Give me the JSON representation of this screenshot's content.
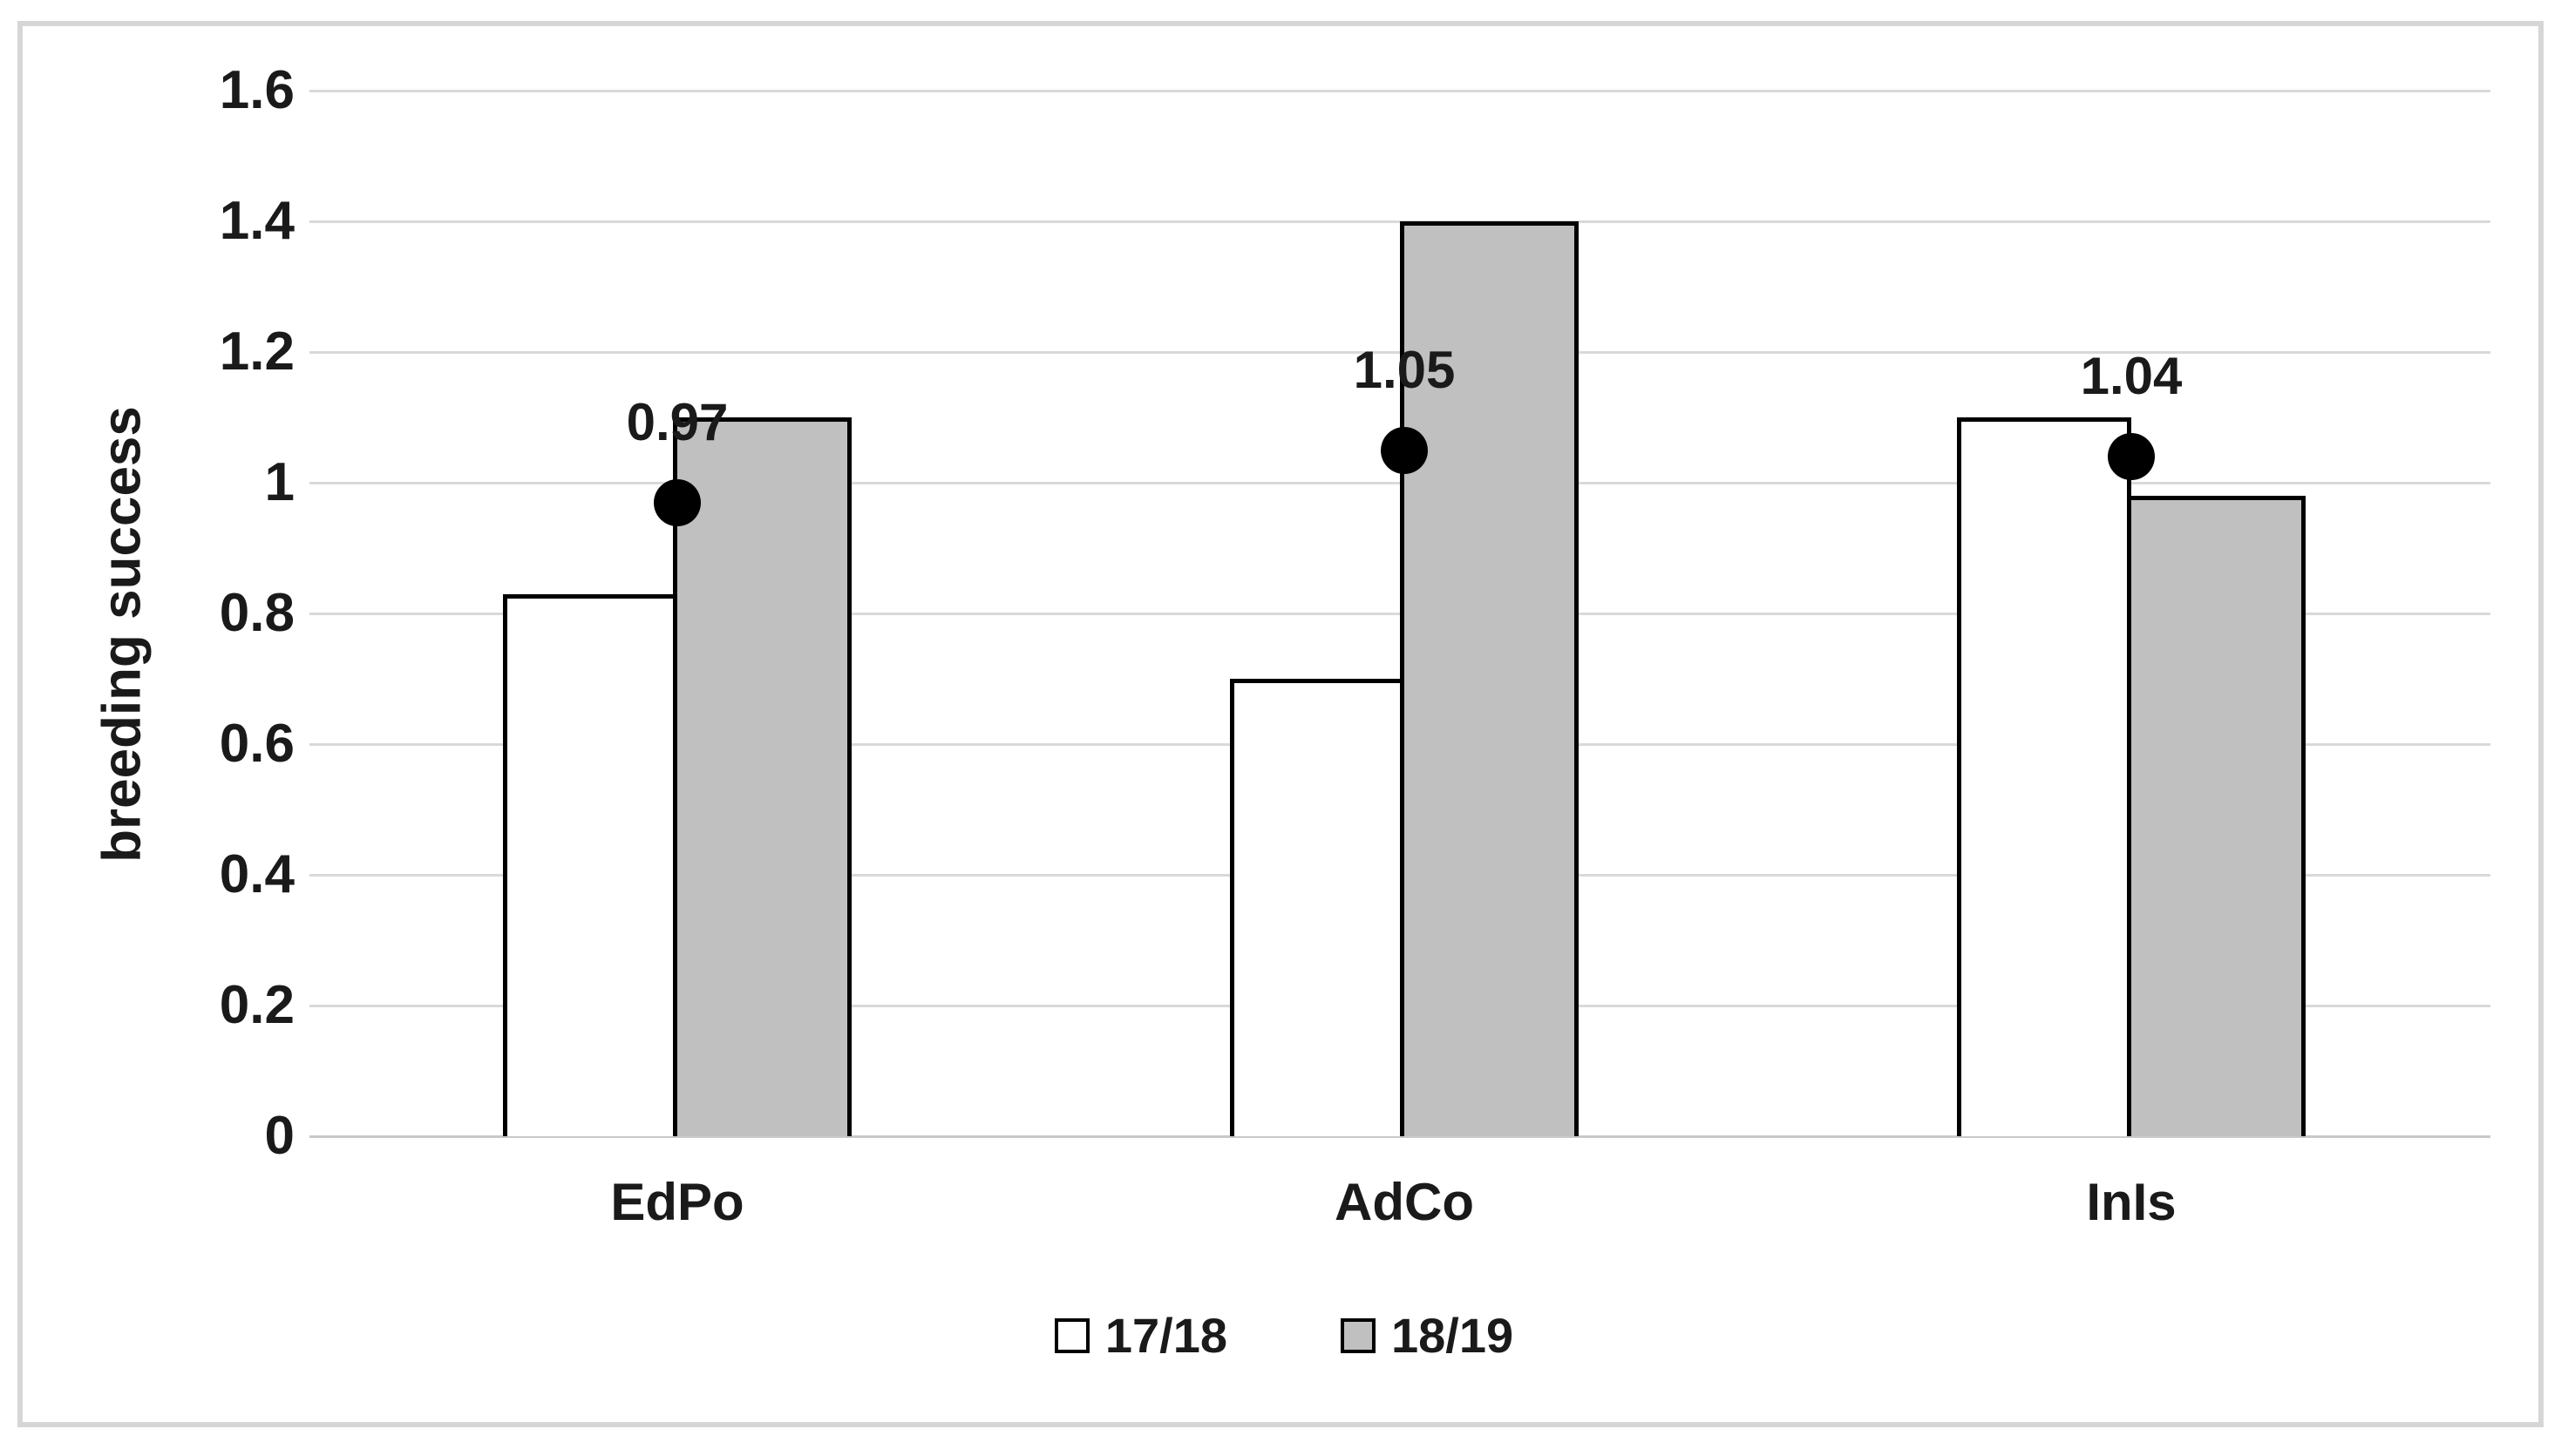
{
  "chart_data": {
    "type": "bar",
    "title": "",
    "xlabel": "",
    "ylabel": "breeding success",
    "categories": [
      "EdPo",
      "AdCo",
      "InIs"
    ],
    "series": [
      {
        "name": "17/18",
        "values": [
          0.83,
          0.7,
          1.1
        ],
        "fill": "#ffffff",
        "border": "#000000"
      },
      {
        "name": "18/19",
        "values": [
          1.1,
          1.4,
          0.98
        ],
        "fill": "#c0c0c0",
        "border": "#000000"
      }
    ],
    "point_overlay": {
      "name": "mean points",
      "values": [
        0.97,
        1.05,
        1.04
      ],
      "labels": [
        "0.97",
        "1.05",
        "1.04"
      ],
      "color": "#000000"
    },
    "ylim": [
      0,
      1.6
    ],
    "yticks": [
      0,
      0.2,
      0.4,
      0.6,
      0.8,
      1,
      1.2,
      1.4,
      1.6
    ],
    "ytick_labels": [
      "0",
      "0.2",
      "0.4",
      "0.6",
      "0.8",
      "1",
      "1.2",
      "1.4",
      "1.6"
    ],
    "grid": true,
    "gridline_color": "#d9d9d9",
    "legend_position": "bottom",
    "legend": [
      "17/18",
      "18/19"
    ]
  }
}
